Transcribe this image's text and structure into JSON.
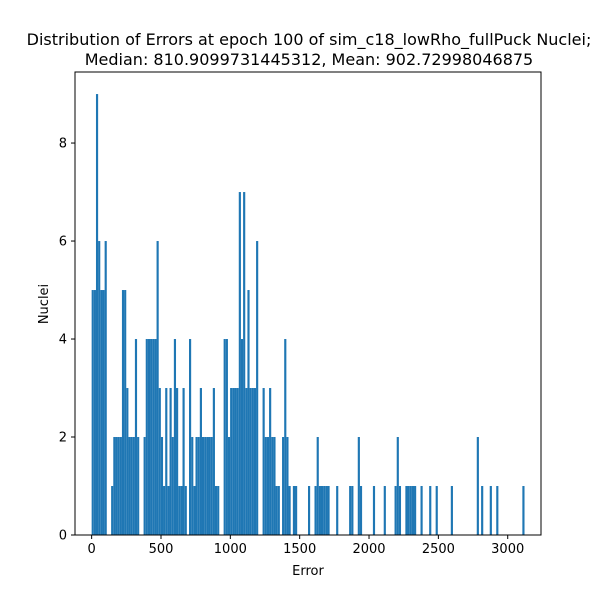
{
  "chart_data": {
    "type": "bar",
    "title": "Distribution of Errors at epoch 100 of sim_c18_lowRho_fullPuck Nuclei;",
    "subtitle": "Median: 810.9099731445312, Mean: 902.72998046875",
    "xlabel": "Error",
    "ylabel": "Nuclei",
    "xlim": [
      -120,
      3240
    ],
    "ylim": [
      0,
      9.45
    ],
    "xticks": [
      0,
      500,
      1000,
      1500,
      2000,
      2500,
      3000
    ],
    "yticks": [
      0,
      2,
      4,
      6,
      8
    ],
    "bar_color": "#1f77b4",
    "bin_width": 15.6,
    "bins": [
      [
        0,
        5
      ],
      [
        15.6,
        5
      ],
      [
        31.2,
        9
      ],
      [
        46.8,
        6
      ],
      [
        62.4,
        5
      ],
      [
        78,
        5
      ],
      [
        93.6,
        6
      ],
      [
        140.4,
        1
      ],
      [
        156,
        2
      ],
      [
        171.6,
        2
      ],
      [
        187.2,
        2
      ],
      [
        202.8,
        2
      ],
      [
        218.4,
        5
      ],
      [
        234,
        5
      ],
      [
        249.6,
        3
      ],
      [
        265.2,
        2
      ],
      [
        280.8,
        2
      ],
      [
        296.4,
        2
      ],
      [
        312,
        4
      ],
      [
        327.6,
        2
      ],
      [
        374.4,
        2
      ],
      [
        390,
        4
      ],
      [
        405.6,
        4
      ],
      [
        421.2,
        4
      ],
      [
        436.8,
        4
      ],
      [
        452.4,
        4
      ],
      [
        468,
        6
      ],
      [
        483.6,
        3
      ],
      [
        499.2,
        2
      ],
      [
        514.8,
        1
      ],
      [
        530.4,
        3
      ],
      [
        546,
        1
      ],
      [
        561.6,
        3
      ],
      [
        577.2,
        2
      ],
      [
        592.8,
        4
      ],
      [
        608.4,
        3
      ],
      [
        624,
        1
      ],
      [
        639.6,
        1
      ],
      [
        655.2,
        3
      ],
      [
        670.8,
        1
      ],
      [
        702,
        4
      ],
      [
        717.6,
        2
      ],
      [
        733.2,
        1
      ],
      [
        748.8,
        2
      ],
      [
        764.4,
        2
      ],
      [
        780,
        3
      ],
      [
        795.6,
        2
      ],
      [
        811.2,
        2
      ],
      [
        826.8,
        2
      ],
      [
        842.4,
        2
      ],
      [
        858,
        2
      ],
      [
        873.6,
        3
      ],
      [
        889.2,
        1
      ],
      [
        904.8,
        1
      ],
      [
        951.6,
        4
      ],
      [
        967.2,
        4
      ],
      [
        982.8,
        2
      ],
      [
        998.4,
        3
      ],
      [
        1014,
        3
      ],
      [
        1029.6,
        3
      ],
      [
        1045.2,
        3
      ],
      [
        1060.8,
        7
      ],
      [
        1076.4,
        4
      ],
      [
        1092,
        7
      ],
      [
        1107.6,
        3
      ],
      [
        1123.2,
        5
      ],
      [
        1138.8,
        3
      ],
      [
        1154.4,
        3
      ],
      [
        1170,
        3
      ],
      [
        1185.6,
        6
      ],
      [
        1232.4,
        3
      ],
      [
        1248,
        2
      ],
      [
        1263.6,
        2
      ],
      [
        1279.2,
        3
      ],
      [
        1294.8,
        2
      ],
      [
        1310.4,
        2
      ],
      [
        1326,
        1
      ],
      [
        1341.6,
        1
      ],
      [
        1372.8,
        2
      ],
      [
        1388.4,
        4
      ],
      [
        1404,
        2
      ],
      [
        1419.6,
        1
      ],
      [
        1450.8,
        1
      ],
      [
        1466.4,
        1
      ],
      [
        1560,
        1
      ],
      [
        1606.8,
        1
      ],
      [
        1622.4,
        2
      ],
      [
        1638,
        1
      ],
      [
        1653.6,
        1
      ],
      [
        1669.2,
        1
      ],
      [
        1684.8,
        1
      ],
      [
        1700.4,
        1
      ],
      [
        1762.8,
        1
      ],
      [
        1856.4,
        1
      ],
      [
        1872,
        1
      ],
      [
        1918.8,
        2
      ],
      [
        1934.4,
        1
      ],
      [
        2028,
        1
      ],
      [
        2106,
        1
      ],
      [
        2184,
        1
      ],
      [
        2199.6,
        2
      ],
      [
        2215.2,
        1
      ],
      [
        2262,
        1
      ],
      [
        2277.6,
        1
      ],
      [
        2293.2,
        1
      ],
      [
        2308.8,
        1
      ],
      [
        2324.4,
        1
      ],
      [
        2371.2,
        1
      ],
      [
        2433.6,
        1
      ],
      [
        2480.4,
        1
      ],
      [
        2589.6,
        1
      ],
      [
        2776.8,
        2
      ],
      [
        2808,
        1
      ],
      [
        2870.4,
        1
      ],
      [
        2917.2,
        1
      ],
      [
        3105.6,
        1
      ]
    ]
  }
}
